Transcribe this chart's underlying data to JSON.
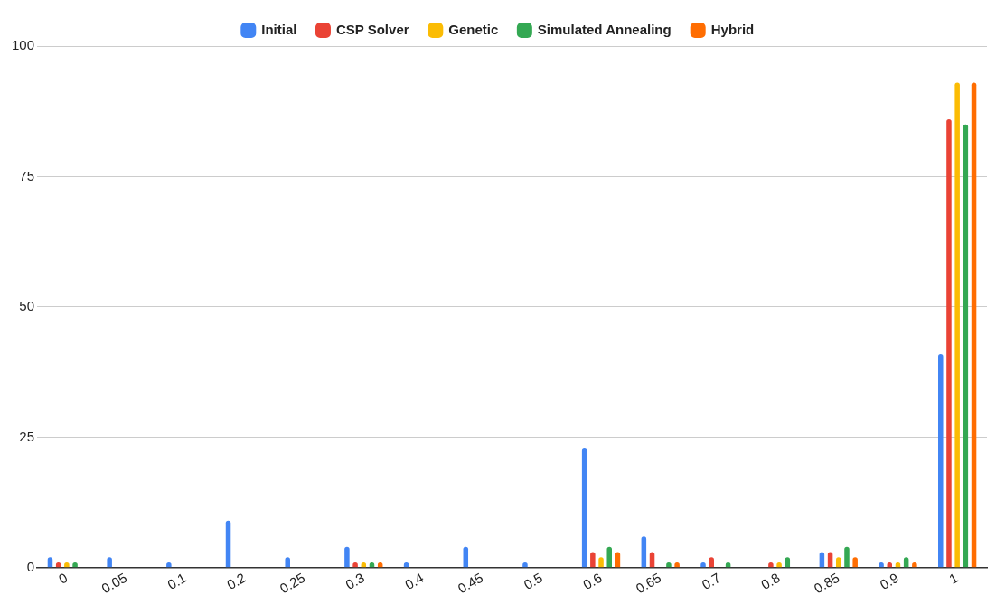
{
  "chart_data": {
    "type": "bar",
    "categories": [
      "0",
      "0.05",
      "0.1",
      "0.2",
      "0.25",
      "0.3",
      "0.4",
      "0.45",
      "0.5",
      "0.6",
      "0.65",
      "0.7",
      "0.8",
      "0.85",
      "0.9",
      "1"
    ],
    "series": [
      {
        "name": "Initial",
        "color": "#4285f4",
        "values": [
          2,
          2,
          1,
          9,
          2,
          4,
          1,
          4,
          1,
          23,
          6,
          1,
          0,
          3,
          1,
          41
        ]
      },
      {
        "name": "CSP Solver",
        "color": "#ea4335",
        "values": [
          1,
          0,
          0,
          0,
          0,
          1,
          0,
          0,
          0,
          3,
          3,
          2,
          1,
          3,
          1,
          86
        ]
      },
      {
        "name": "Genetic",
        "color": "#fbbc04",
        "values": [
          1,
          0,
          0,
          0,
          0,
          1,
          0,
          0,
          0,
          2,
          0,
          0,
          1,
          2,
          1,
          93
        ]
      },
      {
        "name": "Simulated Annealing",
        "color": "#34a853",
        "values": [
          1,
          0,
          0,
          0,
          0,
          1,
          0,
          0,
          0,
          4,
          1,
          1,
          2,
          4,
          2,
          85
        ]
      },
      {
        "name": "Hybrid",
        "color": "#ff6d01",
        "values": [
          0,
          0,
          0,
          0,
          0,
          1,
          0,
          0,
          0,
          3,
          1,
          0,
          0,
          2,
          1,
          93
        ]
      }
    ],
    "ylim": [
      0,
      100
    ],
    "yticks": [
      0,
      25,
      50,
      75,
      100
    ],
    "grid": "y",
    "legend": "top"
  }
}
